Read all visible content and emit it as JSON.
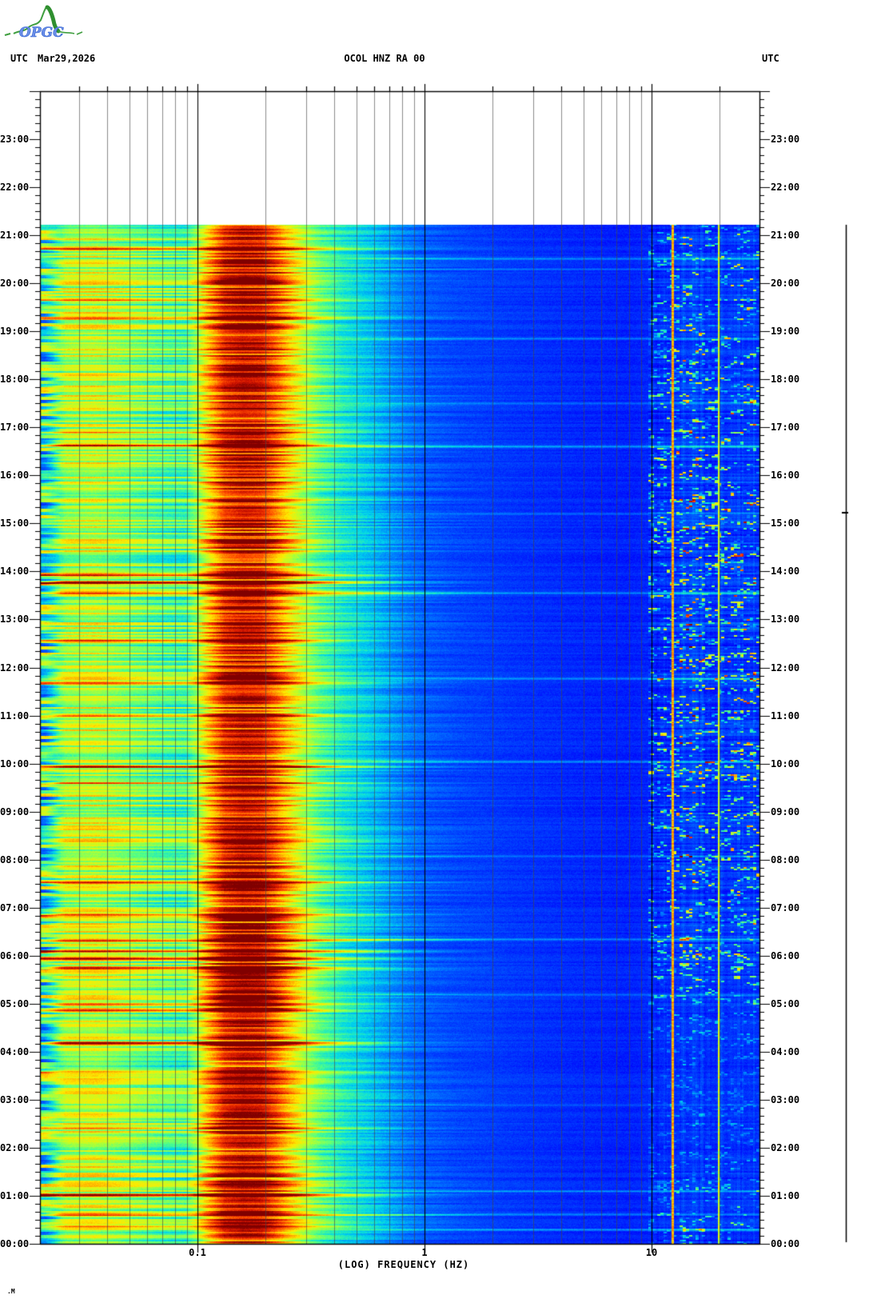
{
  "header": {
    "logo": "OPGC",
    "timezone_left": "UTC",
    "date": "Mar29,2026",
    "title": "OCOL HNZ RA 00",
    "timezone_right": "UTC"
  },
  "footer": {
    "corner_mark": ".M"
  },
  "axes": {
    "x_label": "(LOG) FREQUENCY (HZ)",
    "x_ticks": [
      {
        "label": "0.1",
        "freq": 0.1
      },
      {
        "label": "1",
        "freq": 1
      },
      {
        "label": "10",
        "freq": 10
      }
    ],
    "time_labels_left": [
      "23:00",
      "22:00",
      "21:00",
      "20:00",
      "19:00",
      "18:00",
      "17:00",
      "16:00",
      "15:00",
      "14:00",
      "13:00",
      "12:00",
      "11:00",
      "10:00",
      "09:00",
      "08:00",
      "07:00",
      "06:00",
      "05:00",
      "04:00",
      "03:00",
      "02:00",
      "01:00",
      "00:00"
    ],
    "time_labels_right": [
      "23:00",
      "22:00",
      "21:00",
      "20:00",
      "19:00",
      "18:00",
      "17:00",
      "16:00",
      "15:00",
      "14:00",
      "13:00",
      "12:00",
      "11:00",
      "10:00",
      "09:00",
      "08:00",
      "07:00",
      "06:00",
      "05:00",
      "04:00",
      "03:00",
      "02:00",
      "01:00",
      "00:00"
    ]
  },
  "chart_data": {
    "type": "heatmap",
    "subtype": "seismic-spectrogram",
    "title": "OCOL HNZ RA 00",
    "date_utc": "Mar29,2026",
    "x_axis": {
      "scale": "log",
      "unit": "Hz",
      "min": 0.02,
      "max": 30,
      "major_ticks": [
        0.1,
        1,
        10
      ]
    },
    "y_axis": {
      "unit": "hours UTC",
      "min": 0,
      "max": 24,
      "direction": "bottom-to-top",
      "minor_tick_minutes": 10,
      "label_interval_hours": 1
    },
    "data_time_extent_hours": [
      0,
      21.22
    ],
    "grid": true,
    "noise_seed": 20260329,
    "colormap": {
      "name": "jet",
      "stops": [
        [
          0.0,
          0,
          0,
          120
        ],
        [
          0.12,
          0,
          0,
          252
        ],
        [
          0.3,
          0,
          125,
          255
        ],
        [
          0.4,
          0,
          215,
          235
        ],
        [
          0.5,
          80,
          255,
          135
        ],
        [
          0.6,
          185,
          255,
          45
        ],
        [
          0.68,
          255,
          235,
          0
        ],
        [
          0.76,
          255,
          165,
          0
        ],
        [
          0.84,
          255,
          75,
          0
        ],
        [
          0.92,
          210,
          20,
          0
        ],
        [
          1.0,
          128,
          0,
          0
        ]
      ]
    },
    "spectral_profile_log10hz_level": [
      [
        -1.7,
        0.45
      ],
      [
        -1.64,
        0.5
      ],
      [
        -1.58,
        0.6
      ],
      [
        -1.45,
        0.62
      ],
      [
        -1.3,
        0.57
      ],
      [
        -1.15,
        0.52
      ],
      [
        -1.05,
        0.51
      ],
      [
        -1.0,
        0.6
      ],
      [
        -0.95,
        0.74
      ],
      [
        -0.88,
        0.9
      ],
      [
        -0.8,
        0.95
      ],
      [
        -0.72,
        0.93
      ],
      [
        -0.66,
        0.84
      ],
      [
        -0.6,
        0.73
      ],
      [
        -0.54,
        0.63
      ],
      [
        -0.46,
        0.52
      ],
      [
        -0.36,
        0.44
      ],
      [
        -0.22,
        0.37
      ],
      [
        -0.08,
        0.29
      ],
      [
        0.0,
        0.25
      ],
      [
        0.15,
        0.22
      ],
      [
        0.4,
        0.195
      ],
      [
        0.7,
        0.175
      ],
      [
        0.9,
        0.165
      ],
      [
        1.0,
        0.175
      ],
      [
        1.2,
        0.19
      ],
      [
        1.48,
        0.19
      ]
    ],
    "microseism_band_hz": [
      0.12,
      0.22
    ],
    "low_freq_events_utc_hours_strength": [
      [
        20.72,
        0.22
      ],
      [
        19.65,
        0.25
      ],
      [
        19.28,
        0.15
      ],
      [
        16.92,
        0.2
      ],
      [
        16.62,
        0.28
      ],
      [
        13.93,
        0.3
      ],
      [
        13.77,
        0.42
      ],
      [
        13.55,
        0.38
      ],
      [
        12.58,
        0.2
      ],
      [
        11.67,
        0.25
      ],
      [
        11.0,
        0.15
      ],
      [
        9.95,
        0.35
      ],
      [
        9.6,
        0.2
      ],
      [
        8.4,
        0.18
      ],
      [
        7.53,
        0.25
      ],
      [
        6.85,
        0.3
      ],
      [
        6.33,
        0.38
      ],
      [
        6.1,
        0.42
      ],
      [
        5.95,
        0.3
      ],
      [
        5.75,
        0.28
      ],
      [
        5.0,
        0.2
      ],
      [
        4.87,
        0.22
      ],
      [
        4.18,
        0.42
      ],
      [
        3.58,
        0.22
      ],
      [
        2.42,
        0.2
      ],
      [
        1.02,
        0.45
      ],
      [
        0.6,
        0.25
      ],
      [
        0.35,
        0.2
      ]
    ],
    "broadband_events_utc_hours_strength": [
      [
        0.3,
        0.16
      ],
      [
        0.62,
        0.12
      ],
      [
        1.1,
        0.14
      ],
      [
        2.9,
        0.08
      ],
      [
        5.2,
        0.1
      ],
      [
        6.35,
        0.16
      ],
      [
        8.07,
        0.1
      ],
      [
        10.05,
        0.14
      ],
      [
        11.78,
        0.12
      ],
      [
        13.55,
        0.16
      ],
      [
        15.2,
        0.1
      ],
      [
        16.6,
        0.18
      ],
      [
        17.5,
        0.1
      ],
      [
        18.85,
        0.12
      ],
      [
        20.3,
        0.1
      ],
      [
        20.52,
        0.16
      ]
    ],
    "narrowband_lines_hz_level": [
      [
        12.4,
        0.76
      ],
      [
        19.8,
        0.63
      ]
    ],
    "diffuse_hf_bands_hz_boost": [
      [
        13.2,
        16.5,
        0.55
      ],
      [
        20.5,
        23.5,
        0.25
      ],
      [
        24.5,
        29.0,
        0.35
      ]
    ],
    "hf_activity_by_hour": [
      0.55,
      0.5,
      0.28,
      0.24,
      0.24,
      0.5,
      0.85,
      0.9,
      0.95,
      1.0,
      1.0,
      1.05,
      1.05,
      1.05,
      1.0,
      1.0,
      1.0,
      0.95,
      0.85,
      0.8,
      0.8,
      0.75,
      0.7,
      0.7,
      0.7
    ]
  }
}
